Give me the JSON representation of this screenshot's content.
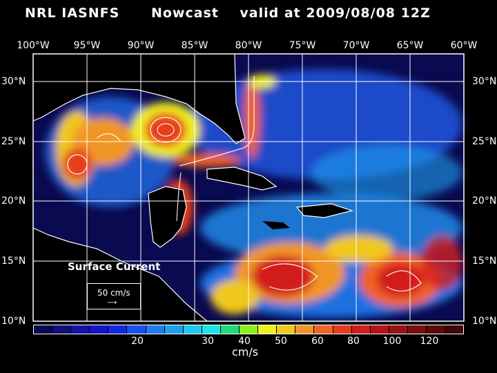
{
  "title": "NRL IASNFS      Nowcast    valid at 2009/08/08 12Z",
  "lon_labels": [
    "100°W",
    "95°W",
    "90°W",
    "85°W",
    "80°W",
    "75°W",
    "70°W",
    "65°W",
    "60°W"
  ],
  "lat_labels": [
    "30°N",
    "25°N",
    "20°N",
    "15°N",
    "10°N"
  ],
  "legend": {
    "label": "Surface Current",
    "ref_vector": "50 cm/s",
    "ref_arrow": "⟶"
  },
  "colorbar": {
    "colors": [
      "#0a0a50",
      "#101078",
      "#1414a0",
      "#1414c8",
      "#1428e6",
      "#1e50f0",
      "#1e7cf0",
      "#1ea0f0",
      "#1ec8f0",
      "#1ee6e6",
      "#1edc78",
      "#8cf01e",
      "#f0f01e",
      "#f0c81e",
      "#f09628",
      "#f06428",
      "#e63c1e",
      "#d21e1e",
      "#b41414",
      "#961414",
      "#781010",
      "#5a0c0c",
      "#3c0808"
    ],
    "labels": [
      "20",
      "30",
      "40",
      "50",
      "60",
      "80",
      "100",
      "120"
    ],
    "units": "cm/s"
  }
}
